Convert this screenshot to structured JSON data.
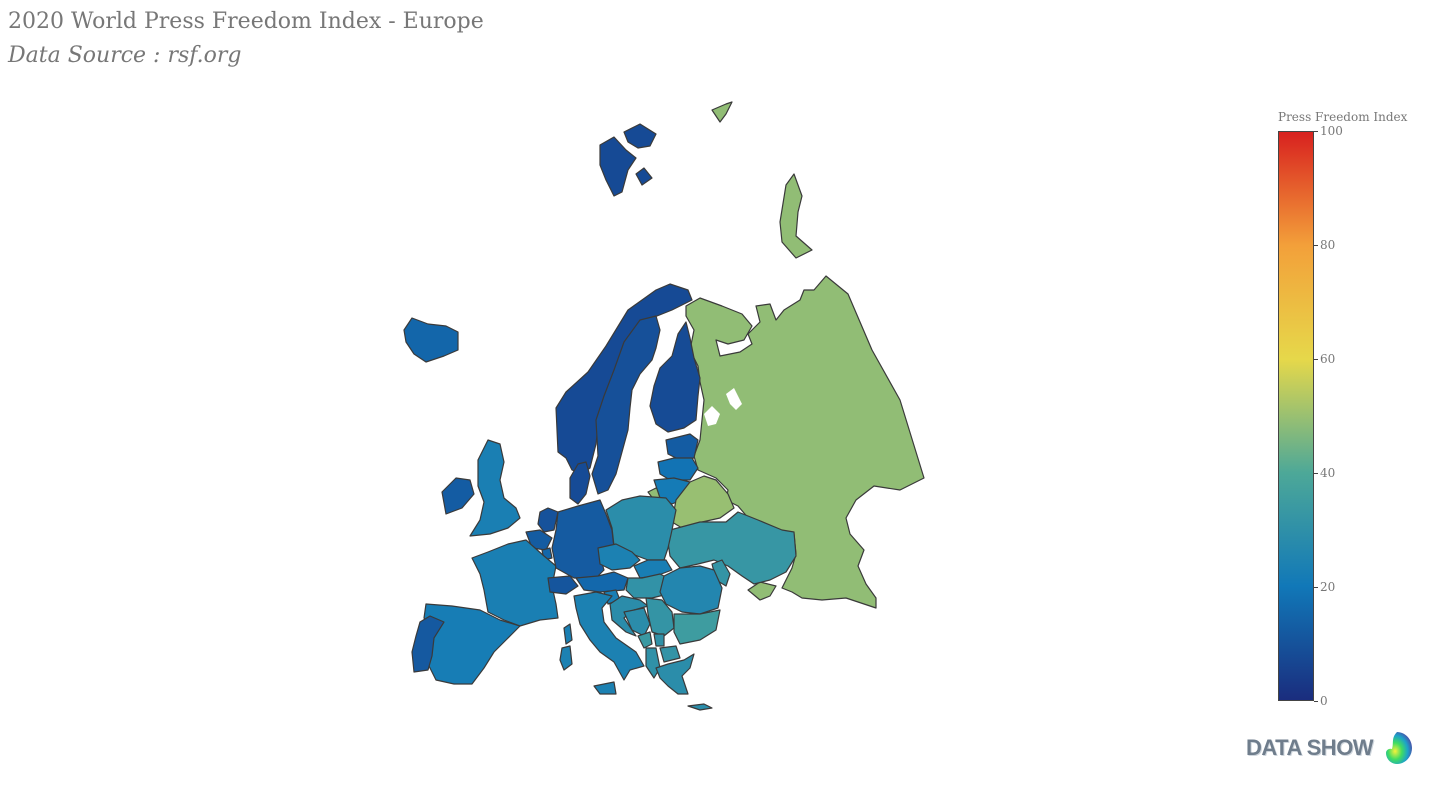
{
  "title": "2020 World Press Freedom Index - Europe",
  "subtitle": "Data Source : rsf.org",
  "colorbar": {
    "title": "Press Freedom Index",
    "min": 0,
    "max": 100,
    "ticks": [
      "100",
      "80",
      "60",
      "40",
      "20",
      "0"
    ],
    "colorscale": [
      "#1a2d7e",
      "#1178b8",
      "#4da898",
      "#e6d84a",
      "#f3a03a",
      "#d8211f"
    ]
  },
  "logo": {
    "text": "DATA SHOW"
  },
  "chart_data": {
    "type": "choropleth",
    "region": "Europe",
    "value_label": "Press Freedom Index",
    "range": [
      0,
      100
    ],
    "regions": [
      {
        "name": "Norway",
        "value": 7.84
      },
      {
        "name": "Finland",
        "value": 7.93
      },
      {
        "name": "Denmark",
        "value": 8.13
      },
      {
        "name": "Sweden",
        "value": 9.25
      },
      {
        "name": "Netherlands",
        "value": 9.96
      },
      {
        "name": "Switzerland",
        "value": 10.62
      },
      {
        "name": "Portugal",
        "value": 11.83
      },
      {
        "name": "Luxembourg",
        "value": 15.46
      },
      {
        "name": "Belgium",
        "value": 12.57
      },
      {
        "name": "Estonia",
        "value": 12.61
      },
      {
        "name": "Germany",
        "value": 12.16
      },
      {
        "name": "Iceland",
        "value": 15.12
      },
      {
        "name": "Ireland",
        "value": 12.6
      },
      {
        "name": "Austria",
        "value": 15.78
      },
      {
        "name": "Latvia",
        "value": 18.56
      },
      {
        "name": "Spain",
        "value": 22.16
      },
      {
        "name": "France",
        "value": 22.92
      },
      {
        "name": "Slovakia",
        "value": 22.67
      },
      {
        "name": "Slovenia",
        "value": 22.64
      },
      {
        "name": "United Kingdom",
        "value": 22.93
      },
      {
        "name": "Lithuania",
        "value": 21.19
      },
      {
        "name": "Italy",
        "value": 23.69
      },
      {
        "name": "Czech Republic",
        "value": 23.57
      },
      {
        "name": "Romania",
        "value": 25.91
      },
      {
        "name": "Croatia",
        "value": 28.51
      },
      {
        "name": "Poland",
        "value": 28.65
      },
      {
        "name": "Bosnia and Herzegovina",
        "value": 28.51
      },
      {
        "name": "Greece",
        "value": 28.8
      },
      {
        "name": "Montenegro",
        "value": 33.83
      },
      {
        "name": "Hungary",
        "value": 30.84
      },
      {
        "name": "Serbia",
        "value": 31.62
      },
      {
        "name": "Albania",
        "value": 30.25
      },
      {
        "name": "North Macedonia",
        "value": 31.28
      },
      {
        "name": "Kosovo",
        "value": 30.45
      },
      {
        "name": "Moldova",
        "value": 31.61
      },
      {
        "name": "Ukraine",
        "value": 32.52
      },
      {
        "name": "Bulgaria",
        "value": 35.06
      },
      {
        "name": "Russia",
        "value": 48.92
      },
      {
        "name": "Belarus",
        "value": 49.75
      }
    ]
  }
}
